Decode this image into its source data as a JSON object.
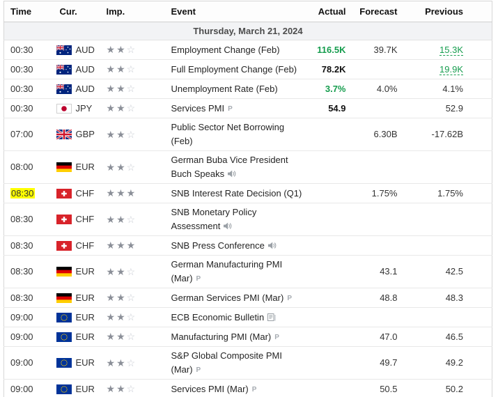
{
  "header": {
    "columns": [
      "Time",
      "Cur.",
      "Imp.",
      "Event",
      "Actual",
      "Forecast",
      "Previous"
    ]
  },
  "date_header": "Thursday, March 21, 2024",
  "colors": {
    "positive_value": "#169d4e",
    "time_highlight": "#ffff00",
    "bottom_bar": "#2e4f63"
  },
  "rows": [
    {
      "time": "00:30",
      "highlight": false,
      "flag": "AU",
      "currency": "AUD",
      "importance": 2,
      "event": "Employment Change (Feb)",
      "icon": null,
      "actual": {
        "text": "116.5K",
        "tone": "positive"
      },
      "forecast": "39.7K",
      "previous": {
        "text": "15.3K",
        "tone": "positive",
        "revised": true
      }
    },
    {
      "time": "00:30",
      "highlight": false,
      "flag": "AU",
      "currency": "AUD",
      "importance": 2,
      "event": "Full Employment Change (Feb)",
      "icon": null,
      "actual": {
        "text": "78.2K",
        "tone": "neutral"
      },
      "forecast": "",
      "previous": {
        "text": "19.9K",
        "tone": "positive",
        "revised": true
      }
    },
    {
      "time": "00:30",
      "highlight": false,
      "flag": "AU",
      "currency": "AUD",
      "importance": 2,
      "event": "Unemployment Rate (Feb)",
      "icon": null,
      "actual": {
        "text": "3.7%",
        "tone": "positive"
      },
      "forecast": "4.0%",
      "previous": {
        "text": "4.1%",
        "tone": "plain",
        "revised": false
      }
    },
    {
      "time": "00:30",
      "highlight": false,
      "flag": "JP",
      "currency": "JPY",
      "importance": 2,
      "event": "Services PMI",
      "icon": "preliminary",
      "actual": {
        "text": "54.9",
        "tone": "neutral"
      },
      "forecast": "",
      "previous": {
        "text": "52.9",
        "tone": "plain",
        "revised": false
      }
    },
    {
      "time": "07:00",
      "highlight": false,
      "flag": "GB",
      "currency": "GBP",
      "importance": 2,
      "event": "Public Sector Net Borrowing (Feb)",
      "icon": null,
      "actual": null,
      "forecast": "6.30B",
      "previous": {
        "text": "-17.62B",
        "tone": "plain",
        "revised": false
      }
    },
    {
      "time": "08:00",
      "highlight": false,
      "flag": "DE",
      "currency": "EUR",
      "importance": 2,
      "event": "German Buba Vice President Buch Speaks",
      "icon": "speech",
      "actual": null,
      "forecast": "",
      "previous": null
    },
    {
      "time": "08:30",
      "highlight": true,
      "flag": "CH",
      "currency": "CHF",
      "importance": 3,
      "event": "SNB Interest Rate Decision (Q1)",
      "icon": null,
      "actual": null,
      "forecast": "1.75%",
      "previous": {
        "text": "1.75%",
        "tone": "plain",
        "revised": false
      }
    },
    {
      "time": "08:30",
      "highlight": false,
      "flag": "CH",
      "currency": "CHF",
      "importance": 2,
      "event": "SNB Monetary Policy Assessment",
      "icon": "speech",
      "actual": null,
      "forecast": "",
      "previous": null
    },
    {
      "time": "08:30",
      "highlight": false,
      "flag": "CH",
      "currency": "CHF",
      "importance": 3,
      "event": "SNB Press Conference",
      "icon": "speech",
      "actual": null,
      "forecast": "",
      "previous": null
    },
    {
      "time": "08:30",
      "highlight": false,
      "flag": "DE",
      "currency": "EUR",
      "importance": 2,
      "event": "German Manufacturing PMI (Mar)",
      "icon": "preliminary",
      "actual": null,
      "forecast": "43.1",
      "previous": {
        "text": "42.5",
        "tone": "plain",
        "revised": false
      }
    },
    {
      "time": "08:30",
      "highlight": false,
      "flag": "DE",
      "currency": "EUR",
      "importance": 2,
      "event": "German Services PMI (Mar)",
      "icon": "preliminary",
      "actual": null,
      "forecast": "48.8",
      "previous": {
        "text": "48.3",
        "tone": "plain",
        "revised": false
      }
    },
    {
      "time": "09:00",
      "highlight": false,
      "flag": "EU",
      "currency": "EUR",
      "importance": 2,
      "event": "ECB Economic Bulletin",
      "icon": "report",
      "actual": null,
      "forecast": "",
      "previous": null
    },
    {
      "time": "09:00",
      "highlight": false,
      "flag": "EU",
      "currency": "EUR",
      "importance": 2,
      "event": "Manufacturing PMI (Mar)",
      "icon": "preliminary",
      "actual": null,
      "forecast": "47.0",
      "previous": {
        "text": "46.5",
        "tone": "plain",
        "revised": false
      }
    },
    {
      "time": "09:00",
      "highlight": false,
      "flag": "EU",
      "currency": "EUR",
      "importance": 2,
      "event": "S&P Global Composite PMI (Mar)",
      "icon": "preliminary",
      "actual": null,
      "forecast": "49.7",
      "previous": {
        "text": "49.2",
        "tone": "plain",
        "revised": false
      }
    },
    {
      "time": "09:00",
      "highlight": false,
      "flag": "EU",
      "currency": "EUR",
      "importance": 2,
      "event": "Services PMI (Mar)",
      "icon": "preliminary",
      "actual": null,
      "forecast": "50.5",
      "previous": {
        "text": "50.2",
        "tone": "plain",
        "revised": false
      }
    }
  ]
}
